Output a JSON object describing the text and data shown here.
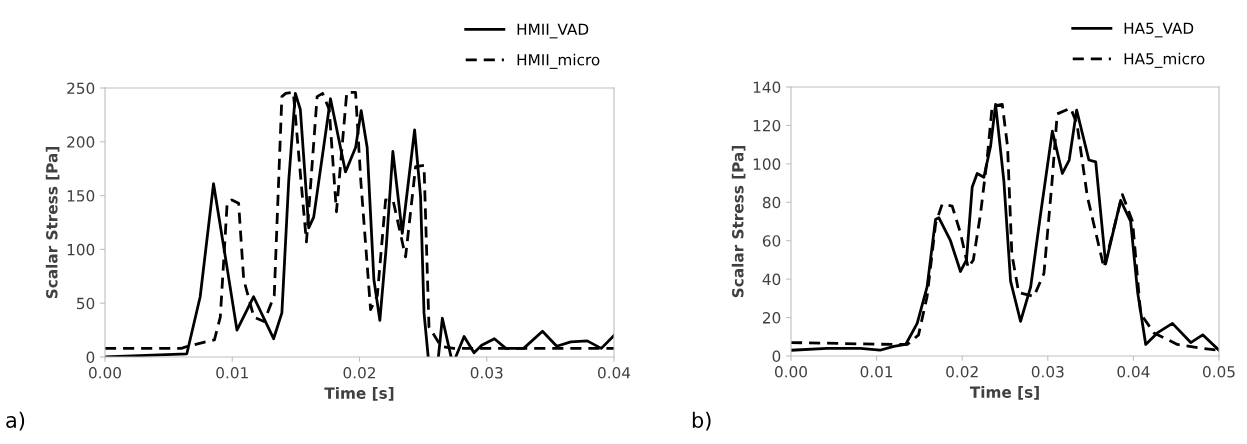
{
  "chart_data": [
    {
      "type": "line",
      "xlabel": "Time [s]",
      "ylabel": "Scalar Stress [Pa]",
      "annotations": [
        "a)"
      ],
      "legend": "top right",
      "marker": "none",
      "xlim": [
        0,
        0.04
      ],
      "ylim": [
        0,
        250
      ],
      "xticks": [
        {
          "value": 0,
          "label": "0.00"
        },
        {
          "value": 0.01,
          "label": "0.01"
        },
        {
          "value": 0.02,
          "label": "0.02"
        },
        {
          "value": 0.03,
          "label": "0.03"
        },
        {
          "value": 0.04,
          "label": "0.04"
        }
      ],
      "yticks": [
        0,
        50,
        100,
        150,
        200,
        250
      ],
      "series": [
        {
          "name": "HMII_VAD",
          "color": "#000000",
          "line_style": "solid",
          "x": [
            0,
            0.00643,
            0.00748,
            0.00853,
            0.00958,
            0.01037,
            0.01168,
            0.01325,
            0.0139,
            0.01444,
            0.01496,
            0.01535,
            0.01601,
            0.0164,
            0.01772,
            0.0189,
            0.0197,
            0.02013,
            0.0206,
            0.02113,
            0.0216,
            0.0221,
            0.02262,
            0.02336,
            0.02433,
            0.0248,
            0.02507,
            0.0254,
            0.0258,
            0.0262,
            0.02651,
            0.0272,
            0.0274,
            0.02756,
            0.02822,
            0.029,
            0.0296,
            0.0306,
            0.0315,
            0.0329,
            0.03438,
            0.0355,
            0.0366,
            0.0379,
            0.039,
            0.04
          ],
          "values": [
            0,
            3,
            56,
            161,
            84,
            25,
            56,
            17,
            41,
            164,
            245,
            230,
            120,
            130,
            240,
            172,
            195,
            229,
            195,
            72,
            34,
            102,
            191,
            115,
            211,
            149,
            41,
            0,
            null,
            0,
            36,
            0,
            null,
            0,
            19,
            4,
            11,
            17,
            8,
            8,
            24,
            10,
            14,
            15,
            8,
            20
          ]
        },
        {
          "name": "HMII_micro",
          "color": "#000000",
          "line_style": "dashed",
          "x": [
            0,
            0.006,
            0.0065,
            0.0086,
            0.00906,
            0.0096,
            0.00997,
            0.0105,
            0.0109,
            0.0117,
            0.0125,
            0.0133,
            0.0139,
            0.0142,
            0.0148,
            0.0154,
            0.01583,
            0.01667,
            0.0171,
            0.01762,
            0.01819,
            0.019,
            0.01969,
            0.0201,
            0.02087,
            0.0214,
            0.02205,
            0.02265,
            0.02362,
            0.02441,
            0.02507,
            0.02546,
            0.0264,
            0.0274,
            0.04
          ],
          "values": [
            8,
            8,
            10,
            16,
            37,
            143,
            146,
            143,
            72,
            37,
            33,
            57,
            242,
            245,
            246,
            164,
            107,
            242,
            245,
            230,
            135,
            246,
            246,
            164,
            44,
            57,
            146,
            145,
            93,
            177,
            178,
            28,
            10,
            8,
            8
          ]
        }
      ]
    },
    {
      "type": "line",
      "xlabel": "Time [s]",
      "ylabel": "Scalar Stress [Pa]",
      "annotations": [
        "b)"
      ],
      "legend": "top right",
      "marker": "none",
      "xlim": [
        0,
        0.05
      ],
      "ylim": [
        0,
        140
      ],
      "xticks": [
        {
          "value": 0,
          "label": "0.00"
        },
        {
          "value": 0.01,
          "label": "0.01"
        },
        {
          "value": 0.02,
          "label": "0.02"
        },
        {
          "value": 0.03,
          "label": "0.03"
        },
        {
          "value": 0.04,
          "label": "0.04"
        },
        {
          "value": 0.05,
          "label": "0.05"
        }
      ],
      "yticks": [
        0,
        20,
        40,
        60,
        80,
        100,
        120,
        140
      ],
      "series": [
        {
          "name": "HA5_VAD",
          "color": "#000000",
          "line_style": "solid",
          "x": [
            0,
            0.0042,
            0.0081,
            0.0104,
            0.012,
            0.0134,
            0.01474,
            0.0159,
            0.01688,
            0.01727,
            0.01863,
            0.0198,
            0.0205,
            0.02117,
            0.02175,
            0.02253,
            0.02331,
            0.0239,
            0.02487,
            0.02565,
            0.02682,
            0.028,
            0.02916,
            0.03053,
            0.0317,
            0.0325,
            0.03337,
            0.0348,
            0.0356,
            0.03676,
            0.03851,
            0.03968,
            0.0405,
            0.04144,
            0.0428,
            0.04456,
            0.0467,
            0.0481,
            0.05
          ],
          "values": [
            3,
            4,
            4,
            3,
            5,
            6,
            17,
            36,
            71,
            72,
            60,
            44,
            50,
            88,
            95,
            93,
            109,
            131,
            91,
            39,
            18,
            36,
            74,
            117,
            95,
            102,
            128,
            102,
            101,
            48,
            81,
            70,
            33,
            6,
            12,
            17,
            7,
            11,
            3
          ]
        },
        {
          "name": "HA5_micro",
          "color": "#000000",
          "line_style": "dashed",
          "x": [
            0,
            0.012,
            0.0136,
            0.0149,
            0.0159,
            0.0169,
            0.01766,
            0.01883,
            0.0198,
            0.0207,
            0.0213,
            0.02214,
            0.0229,
            0.0235,
            0.02468,
            0.0253,
            0.0258,
            0.0266,
            0.02838,
            0.02955,
            0.0305,
            0.0311,
            0.03267,
            0.0334,
            0.03462,
            0.03656,
            0.03871,
            0.0399,
            0.04085,
            0.0424,
            0.04514,
            0.0481,
            0.05
          ],
          "values": [
            7,
            6,
            6,
            11,
            31,
            69,
            79,
            78,
            64,
            46,
            50,
            74,
            102,
            130,
            131,
            109,
            53,
            33,
            31,
            43,
            91,
            126,
            129,
            121,
            83,
            46,
            84,
            70,
            22,
            12,
            6,
            4,
            3
          ]
        }
      ]
    }
  ]
}
